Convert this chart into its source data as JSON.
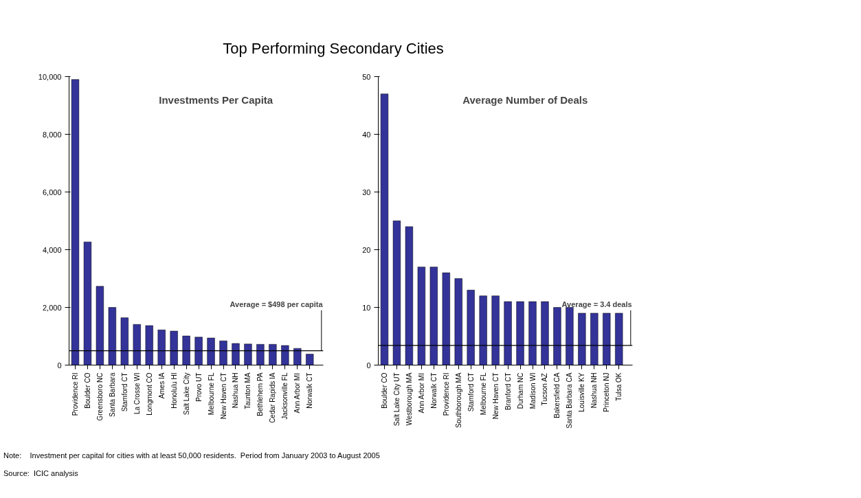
{
  "chart_data": [
    {
      "type": "bar",
      "title": "Investments Per Capita",
      "color": "#333399",
      "categories": [
        "Providence RI",
        "Boulder CO",
        "Greensboro NC",
        "Santa Barbara",
        "Stamford CT",
        "La Crosse WI",
        "Longmont CO",
        "Ames IA",
        "Honolulu HI",
        "Salt Lake City",
        "Provo UT",
        "Melbourne FL",
        "New Haven CT",
        "Nashua NH",
        "Taunton MA",
        "Bethlehem PA",
        "Cedar Rapids IA",
        "Jacksonville FL",
        "Ann Arbor MI",
        "Norwalk CT"
      ],
      "values": [
        9900,
        4270,
        2730,
        2000,
        1640,
        1410,
        1370,
        1220,
        1180,
        1010,
        970,
        940,
        840,
        750,
        730,
        720,
        720,
        680,
        580,
        380
      ],
      "ylim": [
        0,
        10000
      ],
      "yticks": [
        {
          "value": 0,
          "label": "0"
        },
        {
          "value": 2000,
          "label": "2,000"
        },
        {
          "value": 4000,
          "label": "4,000"
        },
        {
          "value": 6000,
          "label": "6,000"
        },
        {
          "value": 8000,
          "label": "8,000"
        },
        {
          "value": 10000,
          "label": "10,000"
        }
      ],
      "grid": false,
      "ref_lines": [
        {
          "axis": "y",
          "value": 498,
          "label": "Average = $498 per capita",
          "color": "#000000"
        }
      ],
      "annotations": [
        "Top Performing Secondary Cities",
        "Note:    Investment per capital for cities with at least 50,000 residents.  Period from January 2003 to August 2005",
        "Source:  ICIC analysis"
      ]
    },
    {
      "type": "bar",
      "title": "Average Number of Deals",
      "color": "#333399",
      "categories": [
        "Boulder CO",
        "Salt Lake City UT",
        "Westborough MA",
        "Ann Arbor MI",
        "Norwalk CT",
        "Providence RI",
        "Southborough MA",
        "Stamford CT",
        "Melbourne FL",
        "New Haven CT",
        "Branford CT",
        "Durham NC",
        "Madison WI",
        "Tucson AZ",
        "Bakersfield CA",
        "Santa Barbara CA",
        "Louisville KY",
        "Nashua NH",
        "Princeton NJ",
        "Tulsa OK"
      ],
      "values": [
        47,
        25,
        24,
        17,
        17,
        16,
        15,
        13,
        12,
        12,
        11,
        11,
        11,
        11,
        10,
        10,
        9,
        9,
        9,
        9
      ],
      "ylim": [
        0,
        50
      ],
      "yticks": [
        0,
        10,
        20,
        30,
        40,
        50
      ],
      "grid": false,
      "ref_lines": [
        {
          "axis": "y",
          "value": 3.4,
          "label": "Average = 3.4 deals",
          "color": "#000000"
        }
      ]
    }
  ]
}
